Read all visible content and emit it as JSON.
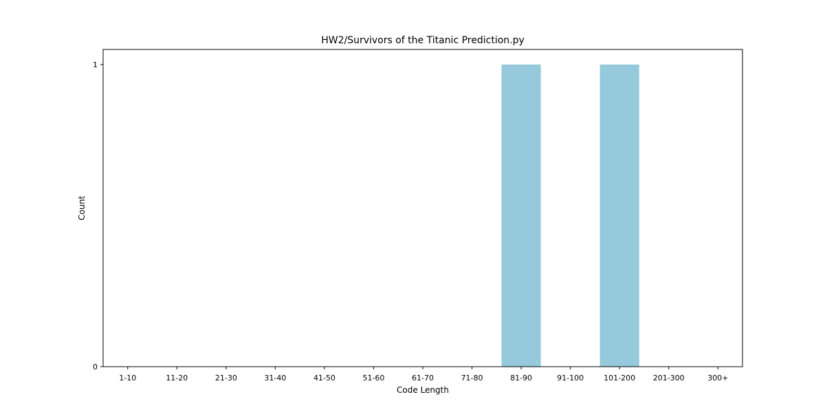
{
  "chart_data": {
    "type": "bar",
    "title": "HW2/Survivors of the Titanic Prediction.py",
    "xlabel": "Code Length",
    "ylabel": "Count",
    "categories": [
      "1-10",
      "11-20",
      "21-30",
      "31-40",
      "41-50",
      "51-60",
      "61-70",
      "71-80",
      "81-90",
      "91-100",
      "101-200",
      "201-300",
      "300+"
    ],
    "values": [
      0,
      0,
      0,
      0,
      0,
      0,
      0,
      0,
      1,
      0,
      1,
      0,
      0
    ],
    "ylim": [
      0,
      1.05
    ],
    "yticks": [
      0,
      1
    ],
    "grid": false,
    "bar_color": "#96c9dc"
  }
}
